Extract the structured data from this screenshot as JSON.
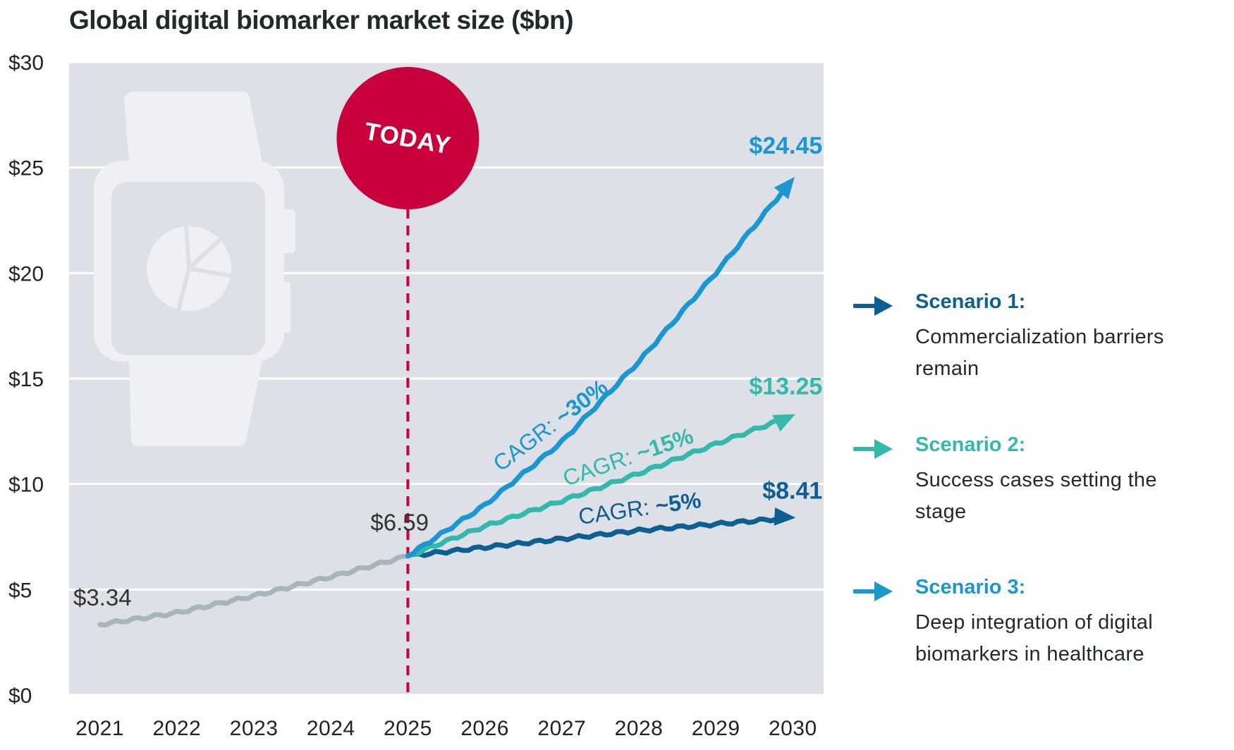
{
  "chart_data": {
    "type": "line",
    "title": "Global digital biomarker market size ($bn)",
    "x": [
      "2021",
      "2022",
      "2023",
      "2024",
      "2025",
      "2026",
      "2027",
      "2028",
      "2029",
      "2030"
    ],
    "ylim": [
      0,
      30
    ],
    "yticks": [
      "$0",
      "$5",
      "$10",
      "$15",
      "$20",
      "$25",
      "$30"
    ],
    "grid": true,
    "marker_label": "TODAY",
    "series": [
      {
        "key": "historical",
        "color": "#a7b4bd",
        "points": [
          [
            2021,
            3.34
          ],
          [
            2022,
            3.9
          ],
          [
            2023,
            4.7
          ],
          [
            2024,
            5.6
          ],
          [
            2025,
            6.59
          ]
        ],
        "start_label": "$3.34",
        "end_label": "$6.59"
      },
      {
        "key": "scenario1",
        "color": "#0e5f91",
        "cagr_prefix": "CAGR:",
        "cagr": "~5%",
        "points": [
          [
            2025,
            6.59
          ],
          [
            2026,
            7.0
          ],
          [
            2027,
            7.4
          ],
          [
            2028,
            7.8
          ],
          [
            2029,
            8.1
          ],
          [
            2030,
            8.41
          ]
        ],
        "end_label": "$8.41"
      },
      {
        "key": "scenario2",
        "color": "#35b8ac",
        "cagr_prefix": "CAGR:",
        "cagr": "~15%",
        "points": [
          [
            2025,
            6.59
          ],
          [
            2026,
            8.0
          ],
          [
            2027,
            9.2
          ],
          [
            2028,
            10.5
          ],
          [
            2029,
            11.9
          ],
          [
            2030,
            13.25
          ]
        ],
        "end_label": "$13.25"
      },
      {
        "key": "scenario3",
        "color": "#1a96d1",
        "cagr_prefix": "CAGR:",
        "cagr": "~30%",
        "points": [
          [
            2025,
            6.59
          ],
          [
            2026,
            9.0
          ],
          [
            2027,
            12.0
          ],
          [
            2028,
            15.8
          ],
          [
            2029,
            20.0
          ],
          [
            2030,
            24.45
          ]
        ],
        "end_label": "$24.45"
      }
    ]
  },
  "legend": [
    {
      "title": "Scenario 1:",
      "desc": "Commercialization barriers remain",
      "color": "#0e5f91"
    },
    {
      "title": "Scenario 2:",
      "desc": "Success cases setting the stage",
      "color": "#35b8ac"
    },
    {
      "title": "Scenario 3:",
      "desc": "Deep integration of digital biomarkers in healthcare",
      "color": "#1a96d1"
    }
  ]
}
